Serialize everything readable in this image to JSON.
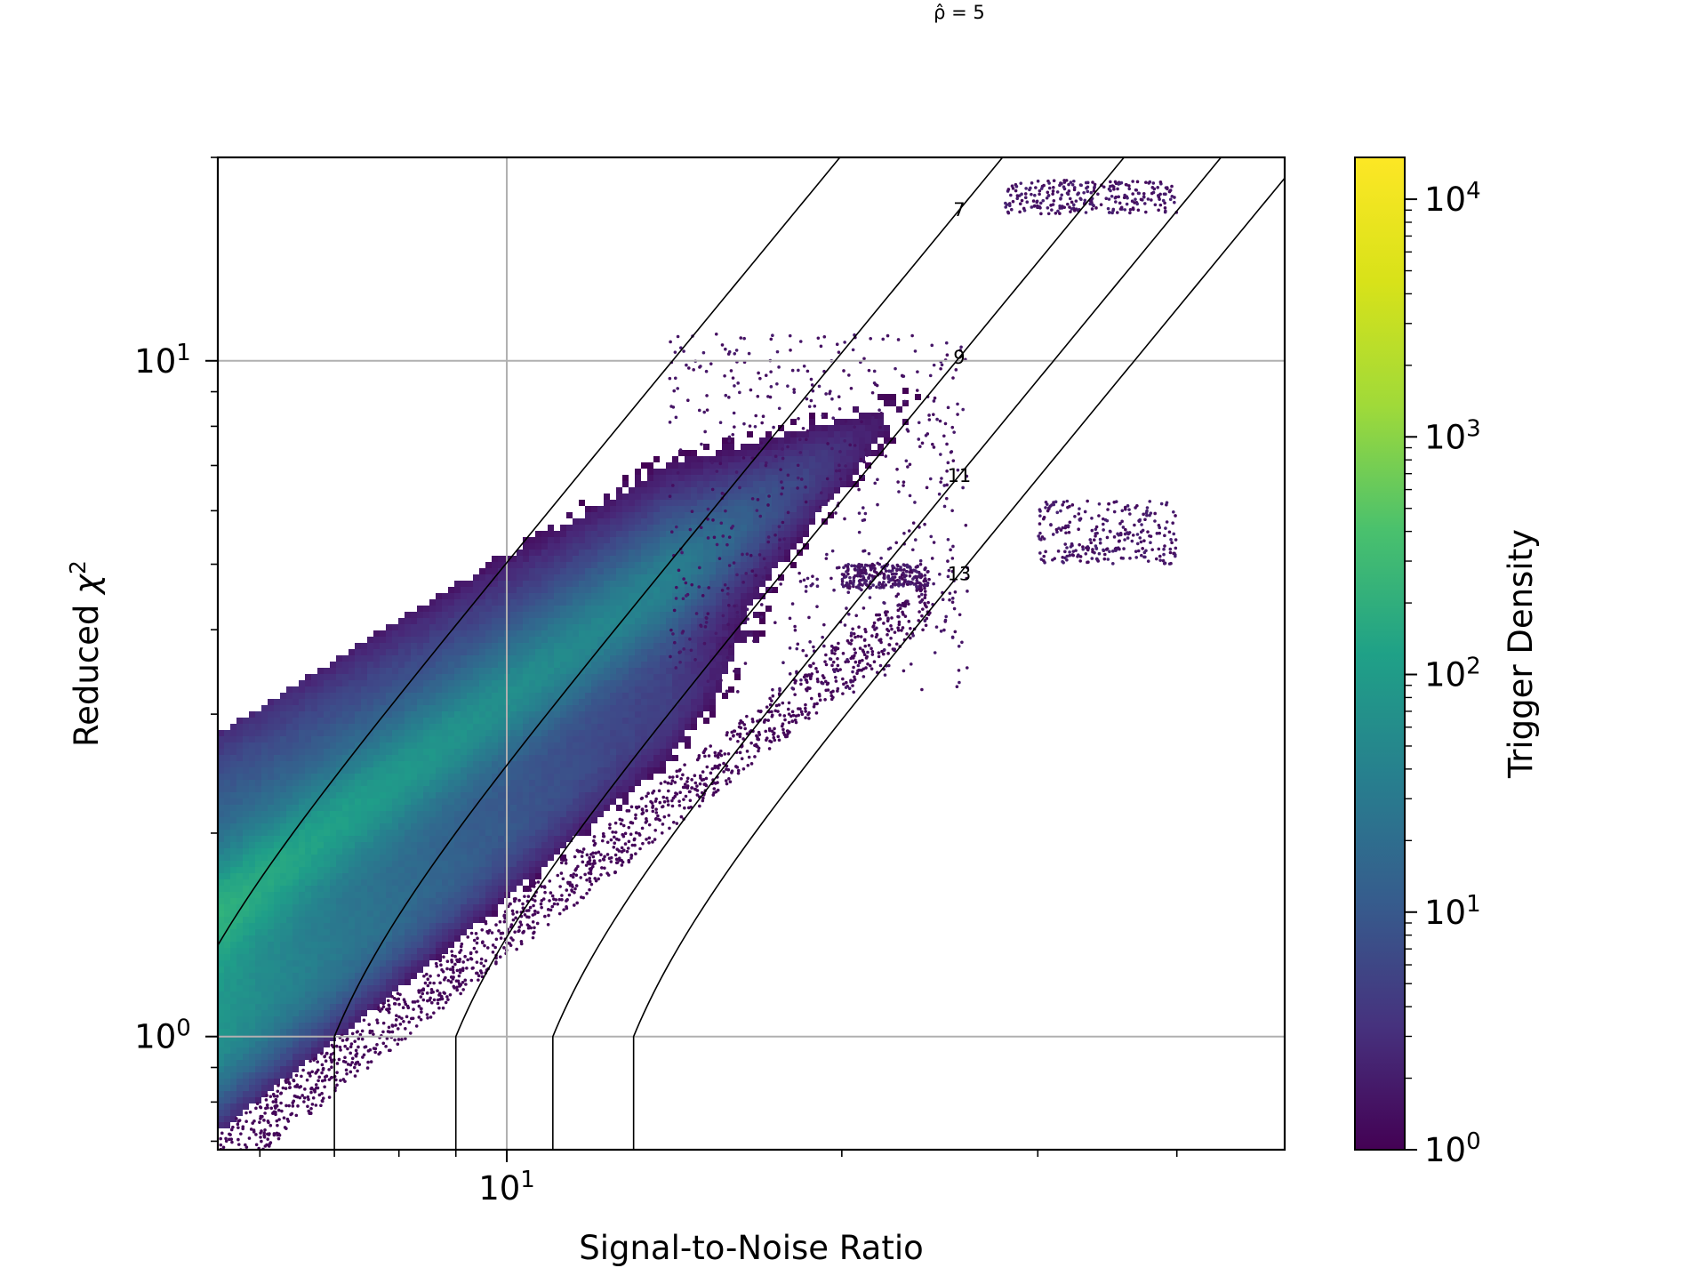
{
  "chart_data": {
    "type": "heatmap",
    "title": "",
    "xlabel": "Signal-to-Noise Ratio",
    "ylabel_prefix": "Reduced ",
    "ylabel_symbol": "χ",
    "ylabel_sup": "2",
    "xscale": "log",
    "yscale": "log",
    "xlim": [
      5.5,
      50
    ],
    "ylim": [
      0.68,
      20
    ],
    "grid": true,
    "x_ticks": [
      {
        "base": "10",
        "exp": "1",
        "value": 10
      }
    ],
    "y_ticks": [
      {
        "base": "10",
        "exp": "0",
        "value": 1
      },
      {
        "base": "10",
        "exp": "1",
        "value": 10
      }
    ],
    "colorbar": {
      "label": "Trigger Density",
      "scale": "log",
      "colormap": "viridis",
      "range": [
        1,
        15000
      ],
      "ticks": [
        {
          "base": "10",
          "exp": "0",
          "value": 1
        },
        {
          "base": "10",
          "exp": "1",
          "value": 10
        },
        {
          "base": "10",
          "exp": "2",
          "value": 100
        },
        {
          "base": "10",
          "exp": "3",
          "value": 1000
        },
        {
          "base": "10",
          "exp": "4",
          "value": 10000
        }
      ]
    },
    "contours": [
      {
        "label": "ρ̂ = 5",
        "rho": 5,
        "label_snr": 25.5
      },
      {
        "label": "7",
        "rho": 7,
        "label_snr": 25.5
      },
      {
        "label": "9",
        "rho": 9,
        "label_snr": 25.5
      },
      {
        "label": "11",
        "rho": 11,
        "label_snr": 25.5
      },
      {
        "label": "13",
        "rho": 13,
        "label_snr": 25.5
      }
    ],
    "density_bands": [
      {
        "description": "main trigger population",
        "snr_range": [
          5.5,
          24
        ],
        "chi2_lower_at_min_snr": 0.72,
        "chi2_upper_at_min_snr": 2.8,
        "peak_density": 15000
      }
    ],
    "outlier_clusters": [
      {
        "snr": [
          28,
          40
        ],
        "chi2": [
          16.5,
          18.5
        ]
      },
      {
        "snr": [
          30,
          40
        ],
        "chi2": [
          5.0,
          6.2
        ]
      },
      {
        "snr": [
          20,
          24
        ],
        "chi2": [
          4.6,
          5.0
        ]
      }
    ]
  }
}
